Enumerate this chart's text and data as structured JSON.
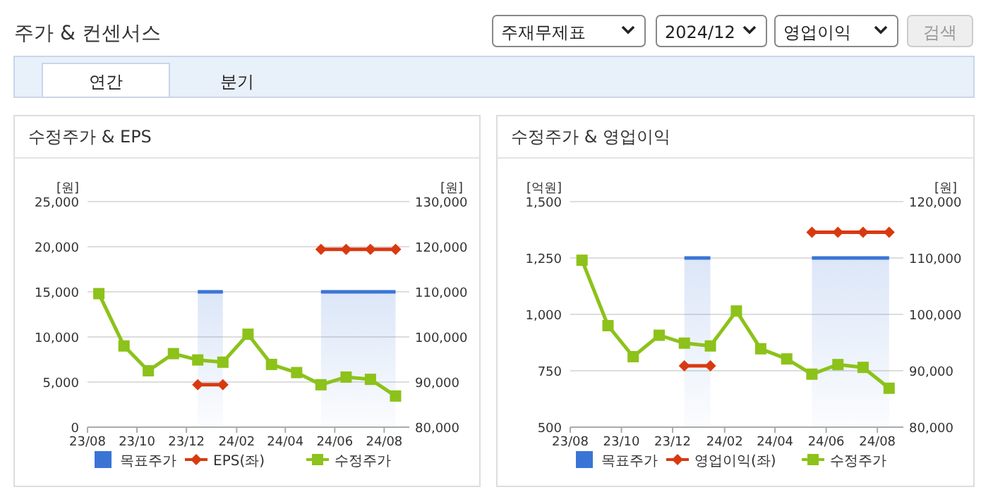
{
  "chart_data": [
    {
      "type": "other",
      "title": "주가 & 컨센서스",
      "annotations": [
        "주재무제표",
        "2024/12",
        "영업이익",
        "검색",
        "연간",
        "분기"
      ]
    },
    {
      "type": "line",
      "title": "수정주가 & EPS",
      "ylabel": "[원]",
      "y2label": "[원]",
      "x": [
        "2023-08-15",
        "2023-09-15",
        "2023-10-15",
        "2023-11-15",
        "2023-12-15",
        "2024-01-15",
        "2024-02-15",
        "2024-03-15",
        "2024-04-15",
        "2024-05-15",
        "2024-06-15",
        "2024-07-15",
        "2024-08-15"
      ],
      "xlim": [
        "2023-08-01",
        "2024-09-01"
      ],
      "xticks": [
        {
          "value": "2023-08-01",
          "label": "23/08"
        },
        {
          "value": "2023-10-01",
          "label": "23/10"
        },
        {
          "value": "2023-12-01",
          "label": "23/12"
        },
        {
          "value": "2024-02-01",
          "label": "24/02"
        },
        {
          "value": "2024-04-01",
          "label": "24/04"
        },
        {
          "value": "2024-06-01",
          "label": "24/06"
        },
        {
          "value": "2024-08-01",
          "label": "24/08"
        }
      ],
      "ylim": [
        0,
        25000
      ],
      "yticks": [
        {
          "value": 0,
          "label": "0"
        },
        {
          "value": 5000,
          "label": "5,000"
        },
        {
          "value": 10000,
          "label": "10,000"
        },
        {
          "value": 15000,
          "label": "15,000"
        },
        {
          "value": 20000,
          "label": "20,000"
        },
        {
          "value": 25000,
          "label": "25,000"
        }
      ],
      "y2lim": [
        80000,
        130000
      ],
      "y2ticks": [
        {
          "value": 80000,
          "label": "80,000"
        },
        {
          "value": 90000,
          "label": "90,000"
        },
        {
          "value": 100000,
          "label": "100,000"
        },
        {
          "value": 110000,
          "label": "110,000"
        },
        {
          "value": 120000,
          "label": "120,000"
        },
        {
          "value": 130000,
          "label": "130,000"
        }
      ],
      "grid": "y",
      "legend": "bottom",
      "series": [
        {
          "name": "목표주가",
          "type": "area",
          "axis": "y2",
          "color": "#3a75d6",
          "values": [
            null,
            null,
            null,
            null,
            110000,
            110000,
            null,
            null,
            null,
            110000,
            110000,
            110000,
            110000
          ]
        },
        {
          "name": "EPS(좌)",
          "type": "line",
          "color": "#d9390f",
          "marker": "diamond",
          "values": [
            null,
            null,
            null,
            null,
            4700,
            4700,
            null,
            null,
            null,
            19700,
            19700,
            19700,
            19700
          ]
        },
        {
          "name": "수정주가",
          "type": "line",
          "axis": "y2",
          "color": "#8cc21a",
          "marker": "square",
          "values": [
            109600,
            98000,
            92500,
            96300,
            94900,
            94400,
            100600,
            93900,
            92100,
            89400,
            91100,
            90600,
            86900
          ]
        }
      ]
    },
    {
      "type": "line",
      "title": "수정주가 & 영업이익",
      "ylabel": "[억원]",
      "y2label": "[원]",
      "x": [
        "2023-08-15",
        "2023-09-15",
        "2023-10-15",
        "2023-11-15",
        "2023-12-15",
        "2024-01-15",
        "2024-02-15",
        "2024-03-15",
        "2024-04-15",
        "2024-05-15",
        "2024-06-15",
        "2024-07-15",
        "2024-08-15"
      ],
      "xlim": [
        "2023-08-01",
        "2024-09-01"
      ],
      "xticks": [
        {
          "value": "2023-08-01",
          "label": "23/08"
        },
        {
          "value": "2023-10-01",
          "label": "23/10"
        },
        {
          "value": "2023-12-01",
          "label": "23/12"
        },
        {
          "value": "2024-02-01",
          "label": "24/02"
        },
        {
          "value": "2024-04-01",
          "label": "24/04"
        },
        {
          "value": "2024-06-01",
          "label": "24/06"
        },
        {
          "value": "2024-08-01",
          "label": "24/08"
        }
      ],
      "ylim": [
        500,
        1500
      ],
      "yticks": [
        {
          "value": 500,
          "label": "500"
        },
        {
          "value": 750,
          "label": "750"
        },
        {
          "value": 1000,
          "label": "1,000"
        },
        {
          "value": 1250,
          "label": "1,250"
        },
        {
          "value": 1500,
          "label": "1,500"
        }
      ],
      "y2lim": [
        80000,
        120000
      ],
      "y2ticks": [
        {
          "value": 80000,
          "label": "80,000"
        },
        {
          "value": 90000,
          "label": "90,000"
        },
        {
          "value": 100000,
          "label": "100,000"
        },
        {
          "value": 110000,
          "label": "110,000"
        },
        {
          "value": 120000,
          "label": "120,000"
        }
      ],
      "grid": "y",
      "legend": "bottom",
      "series": [
        {
          "name": "목표주가",
          "type": "area",
          "axis": "y2",
          "color": "#3a75d6",
          "values": [
            null,
            null,
            null,
            null,
            110000,
            110000,
            null,
            null,
            null,
            110000,
            110000,
            110000,
            110000
          ]
        },
        {
          "name": "영업이익(좌)",
          "type": "line",
          "color": "#d9390f",
          "marker": "diamond",
          "values": [
            null,
            null,
            null,
            null,
            772,
            772,
            null,
            null,
            null,
            1364,
            1364,
            1364,
            1364
          ]
        },
        {
          "name": "수정주가",
          "type": "line",
          "axis": "y2",
          "color": "#8cc21a",
          "marker": "square",
          "values": [
            109600,
            98000,
            92500,
            96300,
            94900,
            94400,
            100600,
            93900,
            92100,
            89400,
            91100,
            90600,
            86900
          ]
        }
      ]
    }
  ]
}
